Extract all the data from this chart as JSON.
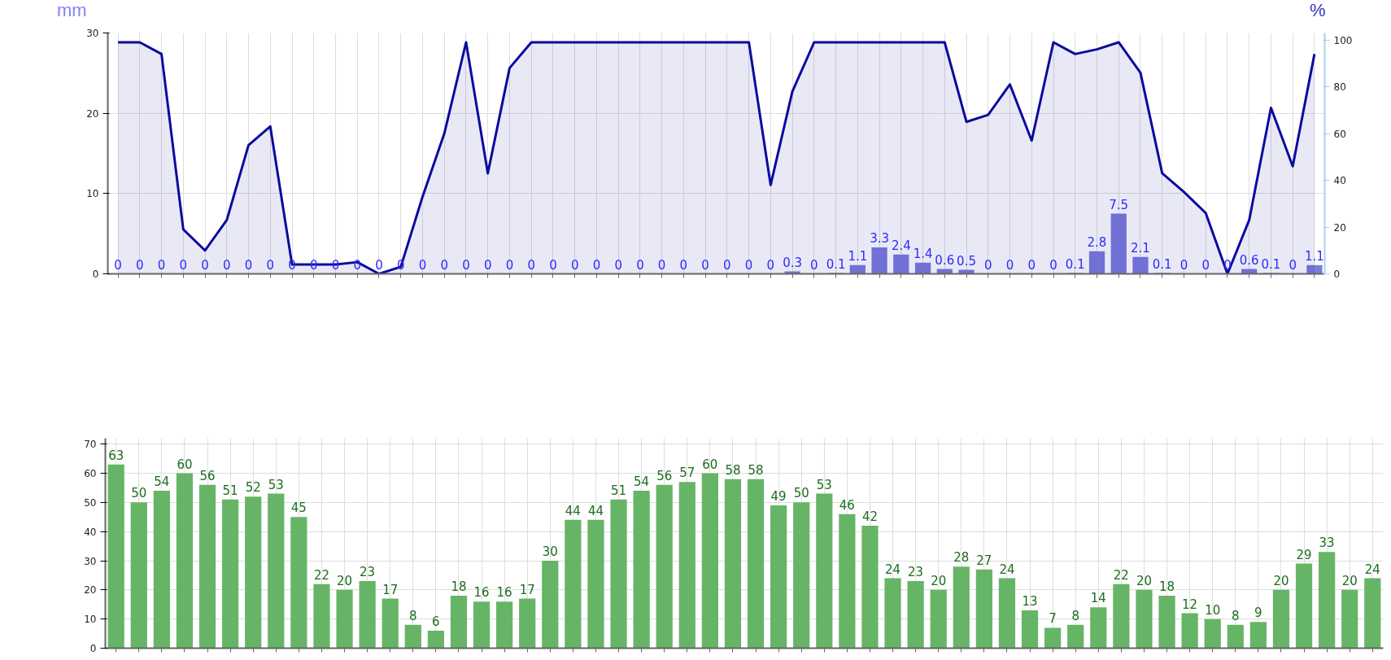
{
  "chart_data": [
    {
      "type": "bar",
      "ylabel": "mm",
      "y2label": "%",
      "categories": [
        null,
        null,
        null,
        null,
        null,
        null,
        null,
        null,
        null,
        null,
        null,
        null,
        null,
        null,
        null,
        null,
        null,
        null,
        null,
        null,
        null,
        null,
        null,
        null,
        null,
        null,
        null,
        null,
        null,
        null,
        null,
        null,
        null,
        null,
        null,
        null,
        null,
        null,
        null,
        null,
        null,
        null,
        null,
        null,
        null,
        null,
        null,
        null,
        null,
        null,
        null,
        null,
        null,
        null,
        null,
        null
      ],
      "series": [
        {
          "type": "bar",
          "color": "#7b7bdb",
          "data_labels": true,
          "values": [
            0,
            0,
            0,
            0,
            0,
            0,
            0,
            0,
            0,
            0,
            0,
            0,
            0,
            0,
            0,
            0,
            0,
            0,
            0,
            0,
            0,
            0,
            0,
            0,
            0,
            0,
            0,
            0,
            0,
            0,
            0,
            0.3,
            0,
            0.1,
            1.1,
            3.3,
            2.4,
            1.4,
            0.6,
            0.5,
            0,
            0,
            0,
            0,
            0.1,
            2.8,
            7.5,
            2.1,
            0.1,
            0,
            0,
            0,
            0.6,
            0.1,
            0,
            1.1
          ]
        },
        {
          "type": "area",
          "axis": "y2",
          "color": "#0a0aa0",
          "values": [
            99,
            99,
            94,
            19,
            10,
            23,
            55,
            63,
            4,
            4,
            4,
            5,
            0,
            3,
            33,
            60,
            99,
            43,
            88,
            99,
            99,
            99,
            99,
            99,
            99,
            99,
            99,
            99,
            99,
            99,
            38,
            78,
            99,
            99,
            99,
            99,
            99,
            99,
            99,
            65,
            68,
            81,
            57,
            99,
            94,
            96,
            99,
            86,
            43,
            35,
            26,
            0,
            23,
            71,
            46,
            94
          ]
        }
      ],
      "ylim": [
        0,
        30
      ],
      "yticks": [
        0,
        10,
        20,
        30
      ],
      "y2lim": [
        0,
        103
      ],
      "y2ticks": [
        0,
        20,
        40,
        60,
        80,
        100
      ],
      "grid": true
    },
    {
      "type": "bar",
      "categories": [
        null,
        null,
        null,
        null,
        null,
        null,
        null,
        null,
        null,
        null,
        null,
        null,
        null,
        null,
        null,
        null,
        null,
        null,
        null,
        null,
        null,
        null,
        null,
        null,
        null,
        null,
        null,
        null,
        null,
        null,
        null,
        null,
        null,
        null,
        null,
        null,
        null,
        null,
        null,
        null,
        null,
        null,
        null,
        null,
        null,
        null,
        null,
        null,
        null,
        null,
        null,
        null,
        null,
        null,
        null,
        null
      ],
      "series": [
        {
          "color": "#66b566",
          "values": [
            63,
            50,
            54,
            60,
            56,
            51,
            52,
            53,
            45,
            22,
            20,
            23,
            17,
            8,
            6,
            18,
            16,
            16,
            17,
            30,
            44,
            44,
            51,
            54,
            56,
            57,
            60,
            58,
            58,
            49,
            50,
            53,
            46,
            42,
            24,
            23,
            20,
            28,
            27,
            24,
            13,
            7,
            8,
            14,
            22,
            20,
            18,
            12,
            10,
            8,
            9,
            20,
            29,
            33,
            20,
            24
          ]
        }
      ],
      "ylim": [
        0,
        72
      ],
      "yticks": [
        0,
        10,
        20,
        30,
        40,
        50,
        60,
        70
      ],
      "data_labels": true,
      "grid": true
    }
  ]
}
